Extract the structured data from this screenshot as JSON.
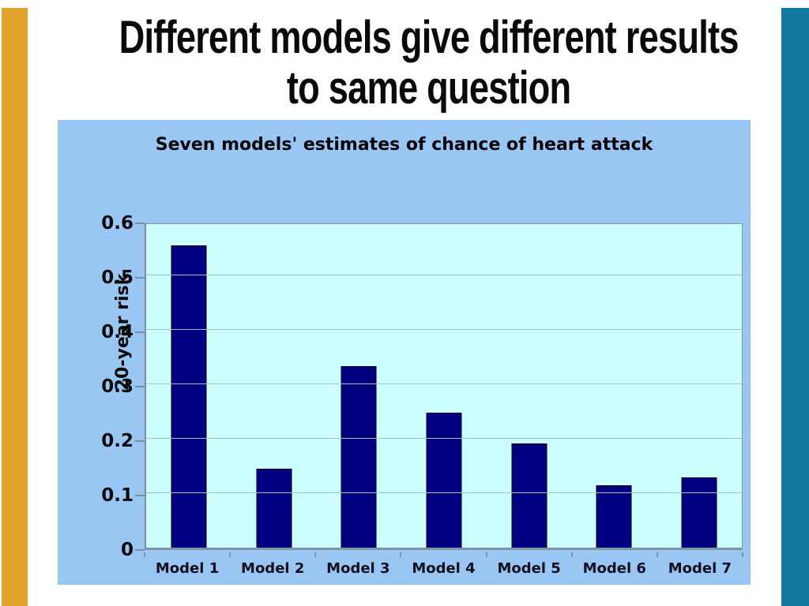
{
  "slide": {
    "title_line1": "Different models give different results",
    "title_line2": "to same question"
  },
  "chart_data": {
    "type": "bar",
    "title": "Seven models' estimates of chance of heart attack",
    "categories": [
      "Model 1",
      "Model 2",
      "Model 3",
      "Model 4",
      "Model 5",
      "Model 6",
      "Model 7"
    ],
    "values": [
      0.56,
      0.146,
      0.336,
      0.25,
      0.193,
      0.116,
      0.13
    ],
    "xlabel": "",
    "ylabel": "20-year risk",
    "ylim": [
      0,
      0.6
    ],
    "yticks": [
      0,
      0.1,
      0.2,
      0.3,
      0.4,
      0.5,
      0.6
    ],
    "ytick_labels": [
      "0",
      "0.1",
      "0.2",
      "0.3",
      "0.4",
      "0.5",
      "0.6"
    ],
    "grid": true,
    "legend": false
  },
  "colors": {
    "accent_left": "#E2A22E",
    "accent_right": "#11799F",
    "chart_background": "#9AC6F4",
    "plot_background": "#CCFEFE",
    "bar_fill": "#000080",
    "gridline": "#A6C2C4",
    "axis": "#7E8F9E",
    "text": "#0a0a0a"
  }
}
